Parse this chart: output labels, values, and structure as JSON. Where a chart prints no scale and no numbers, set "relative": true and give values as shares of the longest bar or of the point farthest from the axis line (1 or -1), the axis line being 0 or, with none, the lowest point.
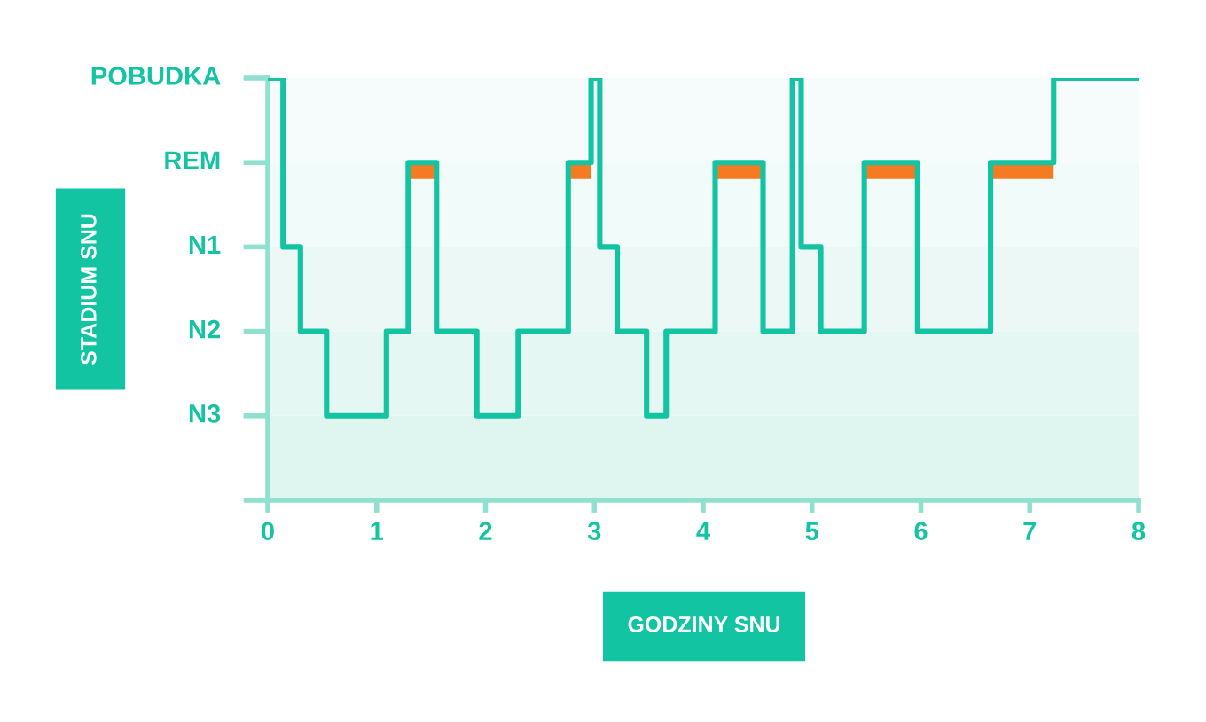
{
  "chart_data": {
    "type": "step",
    "xlabel": "GODZINY SNU",
    "xlim": [
      0,
      8
    ],
    "xticks": [
      0,
      1,
      2,
      3,
      4,
      5,
      6,
      7,
      8
    ],
    "relative": true,
    "annotations": [
      "POBUDKA",
      "REM",
      "N1",
      "N2",
      "N3",
      "STADIUM SNU"
    ],
    "bands": [
      {
        "axis": "y",
        "from": 0,
        "to": 0.2,
        "color": "#dff5f0"
      },
      {
        "axis": "y",
        "from": 0.2,
        "to": 0.4,
        "color": "#e5f7f3"
      },
      {
        "axis": "y",
        "from": 0.4,
        "to": 0.6,
        "color": "#ebf8f6"
      },
      {
        "axis": "y",
        "from": 0.6,
        "to": 0.8,
        "color": "#f1fbf9"
      },
      {
        "axis": "y",
        "from": 0.8,
        "to": 1,
        "color": "#f6fcfc"
      }
    ],
    "grid": false,
    "series": [
      {
        "color": "#12c4a1",
        "x": [
          0,
          0.14,
          0.3,
          0.54,
          1.09,
          1.29,
          1.55,
          1.92,
          2.3,
          2.76,
          2.97,
          3.05,
          3.21,
          3.48,
          3.66,
          4.11,
          4.55,
          4.82,
          4.9,
          5.08,
          5.48,
          5.97,
          6.64,
          7.22,
          8
        ],
        "values": [
          1,
          0.6,
          0.4,
          0.2,
          0.4,
          0.8,
          0.4,
          0.2,
          0.4,
          0.8,
          1,
          0.6,
          0.4,
          0.2,
          0.4,
          0.8,
          0.4,
          1,
          0.6,
          0.4,
          0.8,
          0.4,
          0.8,
          1,
          1
        ]
      },
      {
        "type": "line",
        "color": "#f57b22",
        "x": [
          1.3,
          1.54,
          1.6,
          2.78,
          2.97,
          3.0,
          4.12,
          4.54,
          4.6,
          5.48,
          5.97,
          6.0,
          6.65,
          7.22
        ],
        "values": [
          0.78,
          0.78,
          null,
          0.78,
          0.78,
          null,
          0.78,
          0.78,
          null,
          0.78,
          0.78,
          null,
          0.78,
          0.78
        ]
      }
    ]
  }
}
